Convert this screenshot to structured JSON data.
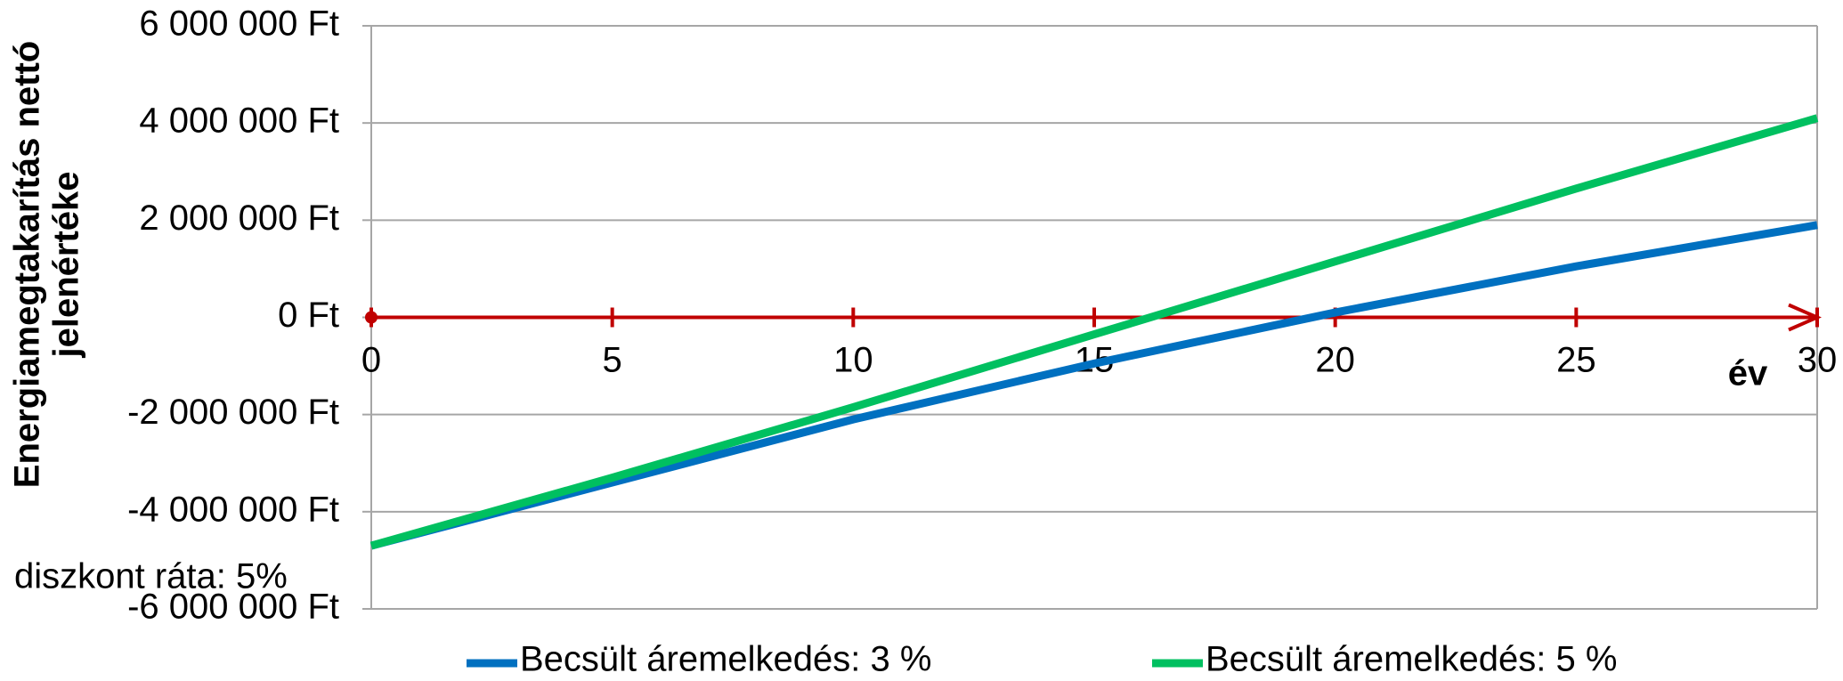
{
  "chart_data": {
    "type": "line",
    "ylabel": [
      "Energiamegtakarítás nettó",
      "jelenértéke"
    ],
    "xlabel": "év",
    "annotation": "diszkont ráta: 5%",
    "x": [
      0,
      5,
      10,
      15,
      20,
      25,
      30
    ],
    "series": [
      {
        "name": "Becsült áremelkedés: 3 %",
        "color": "#0070c0",
        "values": [
          -4700000,
          -3400000,
          -2100000,
          -950000,
          100000,
          1050000,
          1900000
        ]
      },
      {
        "name": "Becsült áremelkedés: 5 %",
        "color": "#00c060",
        "values": [
          -4700000,
          -3300000,
          -1850000,
          -350000,
          1150000,
          2650000,
          4100000
        ]
      }
    ],
    "xlim": [
      0,
      30
    ],
    "xticks": [
      0,
      5,
      10,
      15,
      20,
      25,
      30
    ],
    "ylim": [
      -6000000,
      6000000
    ],
    "yticks": [
      {
        "value": -6000000,
        "label": "-6 000 000 Ft"
      },
      {
        "value": -4000000,
        "label": "-4 000 000 Ft"
      },
      {
        "value": -2000000,
        "label": "-2 000 000 Ft"
      },
      {
        "value": 0,
        "label": "0 Ft"
      },
      {
        "value": 2000000,
        "label": "2 000 000 Ft"
      },
      {
        "value": 4000000,
        "label": "4 000 000 Ft"
      },
      {
        "value": 6000000,
        "label": "6 000 000 Ft"
      }
    ],
    "grid": true,
    "axis_color": "#c00000",
    "legend": "bottom"
  }
}
